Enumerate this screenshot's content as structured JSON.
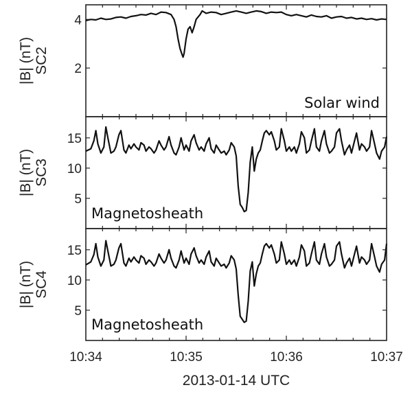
{
  "chart_data": [
    {
      "type": "line",
      "ylabel": "|B| (nT)",
      "ylabel2": "SC2",
      "annotation": "Solar wind",
      "ylim": [
        0,
        4.6
      ],
      "yticks": [
        2,
        4
      ],
      "xlim": [
        0,
        3
      ],
      "series": [
        {
          "x": [
            0.0,
            0.05,
            0.1,
            0.15,
            0.2,
            0.25,
            0.3,
            0.35,
            0.4,
            0.45,
            0.5,
            0.55,
            0.6,
            0.65,
            0.7,
            0.75,
            0.8,
            0.85,
            0.88,
            0.9,
            0.92,
            0.94,
            0.96,
            0.97,
            0.98,
            1.0,
            1.02,
            1.04,
            1.06,
            1.08,
            1.1,
            1.12,
            1.14,
            1.16,
            1.18,
            1.2,
            1.25,
            1.3,
            1.35,
            1.4,
            1.45,
            1.5,
            1.55,
            1.6,
            1.65,
            1.7,
            1.75,
            1.8,
            1.85,
            1.9,
            1.95,
            2.0,
            2.05,
            2.1,
            2.15,
            2.2,
            2.25,
            2.3,
            2.35,
            2.4,
            2.45,
            2.5,
            2.55,
            2.6,
            2.65,
            2.7,
            2.75,
            2.8,
            2.85,
            2.9,
            2.95,
            3.0
          ],
          "values": [
            3.95,
            4.0,
            3.98,
            4.05,
            4.0,
            4.02,
            4.08,
            4.1,
            4.05,
            4.12,
            4.15,
            4.2,
            4.18,
            4.25,
            4.2,
            4.3,
            4.28,
            4.2,
            4.0,
            3.7,
            3.2,
            2.8,
            2.55,
            2.45,
            2.6,
            3.2,
            3.6,
            3.7,
            3.45,
            3.7,
            4.0,
            4.1,
            4.2,
            4.35,
            4.3,
            4.25,
            4.3,
            4.28,
            4.2,
            4.25,
            4.3,
            4.35,
            4.3,
            4.25,
            4.3,
            4.35,
            4.32,
            4.25,
            4.3,
            4.28,
            4.3,
            4.2,
            4.15,
            4.2,
            4.15,
            4.1,
            4.18,
            4.12,
            4.1,
            4.15,
            4.05,
            4.1,
            4.12,
            4.05,
            4.08,
            4.02,
            4.05,
            4.0,
            4.03,
            3.98,
            4.02,
            4.0
          ]
        }
      ]
    },
    {
      "type": "line",
      "ylabel": "|B| (nT)",
      "ylabel2": "SC3",
      "annotation": "Magnetosheath",
      "ylim": [
        0,
        18.5
      ],
      "yticks": [
        5,
        10,
        15
      ],
      "xlim": [
        0,
        3
      ],
      "series": [
        {
          "x": [
            0.0,
            0.05,
            0.08,
            0.1,
            0.12,
            0.15,
            0.18,
            0.2,
            0.22,
            0.25,
            0.28,
            0.3,
            0.33,
            0.35,
            0.38,
            0.4,
            0.43,
            0.45,
            0.48,
            0.5,
            0.53,
            0.55,
            0.58,
            0.6,
            0.63,
            0.65,
            0.68,
            0.7,
            0.73,
            0.75,
            0.78,
            0.8,
            0.83,
            0.85,
            0.88,
            0.9,
            0.93,
            0.95,
            0.98,
            1.0,
            1.03,
            1.05,
            1.08,
            1.1,
            1.13,
            1.15,
            1.18,
            1.2,
            1.23,
            1.25,
            1.28,
            1.3,
            1.33,
            1.35,
            1.38,
            1.4,
            1.43,
            1.45,
            1.48,
            1.5,
            1.52,
            1.54,
            1.56,
            1.58,
            1.6,
            1.62,
            1.64,
            1.66,
            1.68,
            1.7,
            1.72,
            1.74,
            1.76,
            1.78,
            1.8,
            1.83,
            1.85,
            1.88,
            1.9,
            1.93,
            1.95,
            1.98,
            2.0,
            2.03,
            2.05,
            2.08,
            2.1,
            2.13,
            2.15,
            2.18,
            2.2,
            2.23,
            2.25,
            2.28,
            2.3,
            2.33,
            2.35,
            2.38,
            2.4,
            2.43,
            2.45,
            2.48,
            2.5,
            2.53,
            2.55,
            2.58,
            2.6,
            2.63,
            2.65,
            2.68,
            2.7,
            2.73,
            2.75,
            2.78,
            2.8,
            2.83,
            2.85,
            2.88,
            2.9,
            2.93,
            2.95,
            2.98,
            3.0
          ],
          "values": [
            12.8,
            13.2,
            14.5,
            16.2,
            14.0,
            12.5,
            13.5,
            16.8,
            15.0,
            12.5,
            12.8,
            13.5,
            15.5,
            16.2,
            13.0,
            12.5,
            13.8,
            13.2,
            14.0,
            13.5,
            13.0,
            14.2,
            13.8,
            12.8,
            13.5,
            13.2,
            12.5,
            13.0,
            14.5,
            13.8,
            13.0,
            13.5,
            15.2,
            13.8,
            12.5,
            12.2,
            13.5,
            15.0,
            13.0,
            13.8,
            12.8,
            14.5,
            15.5,
            14.2,
            13.0,
            13.5,
            12.8,
            14.0,
            15.0,
            13.2,
            12.5,
            13.8,
            13.0,
            12.5,
            12.8,
            12.2,
            13.0,
            14.2,
            13.5,
            12.0,
            7.0,
            4.0,
            3.5,
            2.8,
            3.0,
            6.0,
            11.0,
            13.5,
            9.5,
            11.5,
            12.5,
            13.0,
            14.5,
            15.8,
            16.2,
            15.5,
            16.0,
            14.5,
            13.0,
            13.5,
            16.5,
            14.5,
            12.8,
            13.5,
            12.8,
            13.5,
            12.5,
            14.0,
            16.0,
            15.0,
            12.5,
            13.0,
            14.5,
            16.5,
            13.5,
            12.8,
            14.5,
            16.2,
            14.0,
            12.5,
            12.8,
            13.5,
            15.8,
            16.5,
            14.5,
            12.2,
            13.0,
            13.8,
            12.5,
            14.5,
            15.8,
            13.0,
            14.0,
            13.5,
            12.8,
            13.5,
            16.2,
            14.0,
            12.5,
            11.5,
            12.8,
            13.5,
            15.2
          ]
        }
      ]
    },
    {
      "type": "line",
      "ylabel": "|B| (nT)",
      "ylabel2": "SC4",
      "annotation": "Magnetosheath",
      "ylim": [
        0,
        18.5
      ],
      "yticks": [
        5,
        10,
        15
      ],
      "xlim": [
        0,
        3
      ],
      "xticks": [
        "10:34",
        "10:35",
        "10:36",
        "10:37"
      ],
      "xlabel": "2013-01-14 UTC",
      "series": [
        {
          "x": [
            0.0,
            0.05,
            0.08,
            0.1,
            0.12,
            0.15,
            0.18,
            0.2,
            0.22,
            0.25,
            0.28,
            0.3,
            0.33,
            0.35,
            0.38,
            0.4,
            0.43,
            0.45,
            0.48,
            0.5,
            0.53,
            0.55,
            0.58,
            0.6,
            0.63,
            0.65,
            0.68,
            0.7,
            0.73,
            0.75,
            0.78,
            0.8,
            0.83,
            0.85,
            0.88,
            0.9,
            0.93,
            0.95,
            0.98,
            1.0,
            1.03,
            1.05,
            1.08,
            1.1,
            1.13,
            1.15,
            1.18,
            1.2,
            1.23,
            1.25,
            1.28,
            1.3,
            1.33,
            1.35,
            1.38,
            1.4,
            1.43,
            1.45,
            1.48,
            1.5,
            1.52,
            1.54,
            1.56,
            1.58,
            1.6,
            1.62,
            1.64,
            1.66,
            1.68,
            1.7,
            1.72,
            1.74,
            1.76,
            1.78,
            1.8,
            1.83,
            1.85,
            1.88,
            1.9,
            1.93,
            1.95,
            1.98,
            2.0,
            2.03,
            2.05,
            2.08,
            2.1,
            2.13,
            2.15,
            2.18,
            2.2,
            2.23,
            2.25,
            2.28,
            2.3,
            2.33,
            2.35,
            2.38,
            2.4,
            2.43,
            2.45,
            2.48,
            2.5,
            2.53,
            2.55,
            2.58,
            2.6,
            2.63,
            2.65,
            2.68,
            2.7,
            2.73,
            2.75,
            2.78,
            2.8,
            2.83,
            2.85,
            2.88,
            2.9,
            2.93,
            2.95,
            2.98,
            3.0
          ],
          "values": [
            12.5,
            13.0,
            14.2,
            16.0,
            13.8,
            12.3,
            13.3,
            16.5,
            14.8,
            12.3,
            12.6,
            13.3,
            15.3,
            16.0,
            12.8,
            12.3,
            13.6,
            13.0,
            13.8,
            13.3,
            12.8,
            14.0,
            13.6,
            12.6,
            13.3,
            13.0,
            12.3,
            12.8,
            14.3,
            13.6,
            12.8,
            13.3,
            15.0,
            13.6,
            12.3,
            12.0,
            13.3,
            14.8,
            12.8,
            13.6,
            12.6,
            14.3,
            15.3,
            14.0,
            12.8,
            13.3,
            12.6,
            13.8,
            14.8,
            13.0,
            12.3,
            13.6,
            12.8,
            12.3,
            12.6,
            12.0,
            12.8,
            14.0,
            13.3,
            11.8,
            7.5,
            4.0,
            3.5,
            3.0,
            3.2,
            6.5,
            11.5,
            13.0,
            9.0,
            11.0,
            12.3,
            12.8,
            14.3,
            15.6,
            16.0,
            15.3,
            15.8,
            14.3,
            12.8,
            13.3,
            16.3,
            14.3,
            12.6,
            13.3,
            12.6,
            13.3,
            12.3,
            13.8,
            15.8,
            14.8,
            12.3,
            12.8,
            14.3,
            16.3,
            13.3,
            12.6,
            14.3,
            16.0,
            13.8,
            12.3,
            12.6,
            13.3,
            15.6,
            16.3,
            14.3,
            12.0,
            12.8,
            13.6,
            12.3,
            14.3,
            15.6,
            12.8,
            13.8,
            13.3,
            12.6,
            13.3,
            16.0,
            13.8,
            12.3,
            11.3,
            12.6,
            13.3,
            16.0
          ]
        }
      ]
    }
  ]
}
